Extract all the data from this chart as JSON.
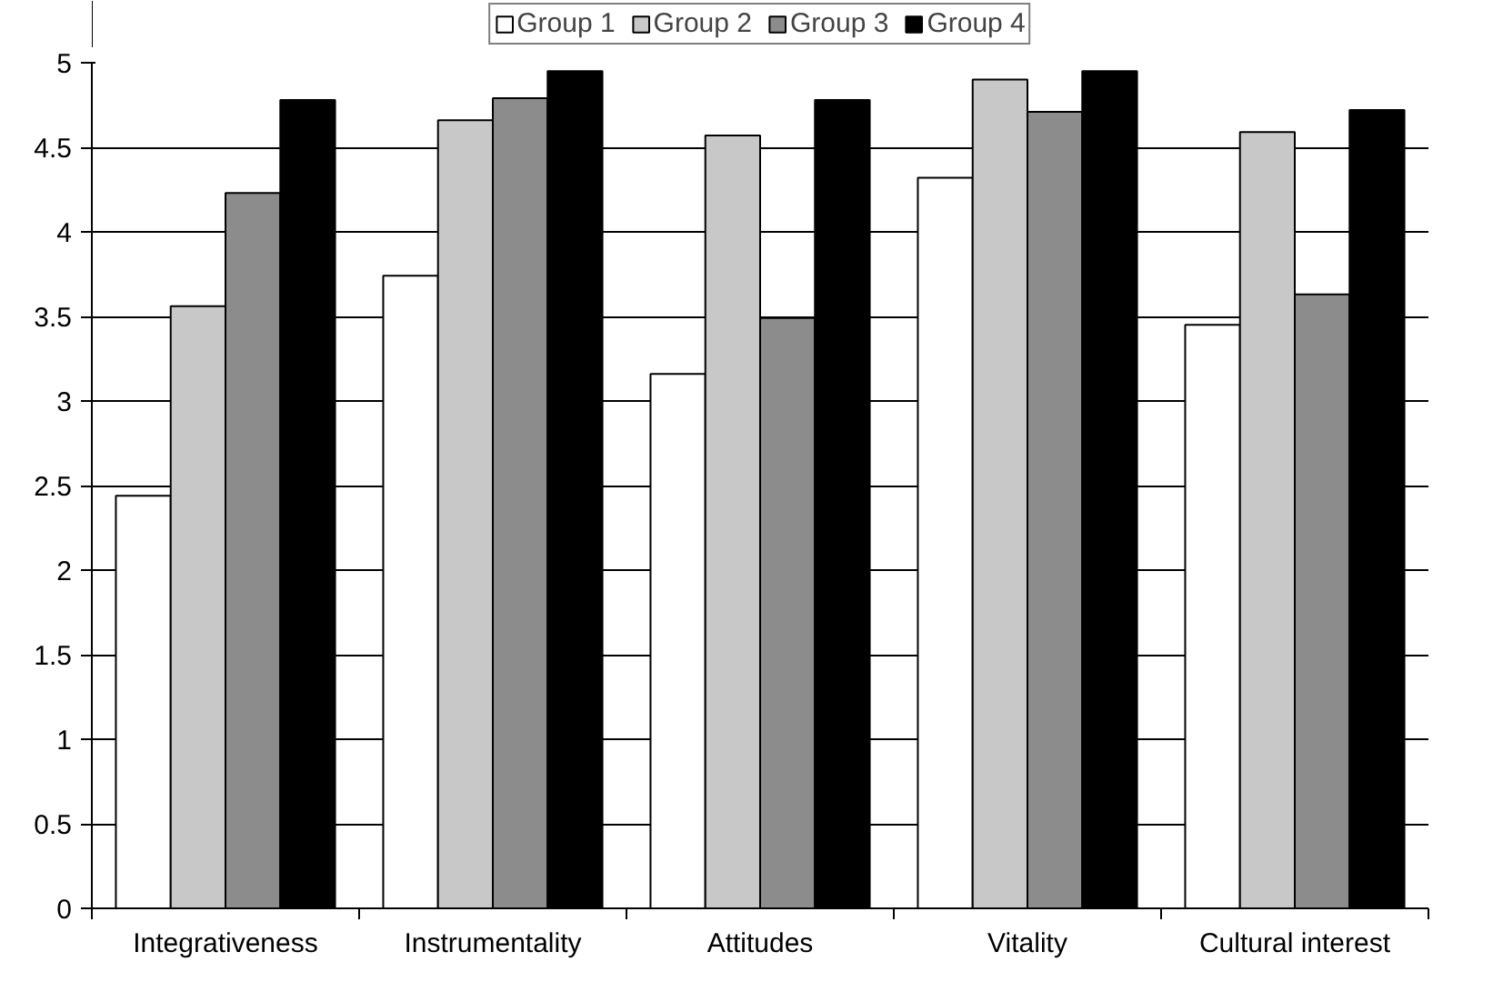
{
  "chart_data": {
    "type": "bar",
    "categories": [
      "Integrativeness",
      "Instrumentality",
      "Attitudes",
      "Vitality",
      "Cultural interest"
    ],
    "series": [
      {
        "name": "Group 1",
        "color": "#ffffff",
        "values": [
          2.44,
          3.74,
          3.16,
          4.32,
          3.45
        ]
      },
      {
        "name": "Group 2",
        "color": "#c8c8c8",
        "values": [
          3.56,
          4.66,
          4.57,
          4.9,
          4.59
        ]
      },
      {
        "name": "Group 3",
        "color": "#8c8c8c",
        "values": [
          4.23,
          4.79,
          3.49,
          4.71,
          3.63
        ]
      },
      {
        "name": "Group 4",
        "color": "#000000",
        "values": [
          4.78,
          4.95,
          4.78,
          4.95,
          4.72
        ]
      }
    ],
    "ylim": [
      0,
      5
    ],
    "yticks": [
      0,
      0.5,
      1,
      1.5,
      2,
      2.5,
      3,
      3.5,
      4,
      4.5,
      5
    ],
    "grid": "y",
    "legend": "top"
  }
}
